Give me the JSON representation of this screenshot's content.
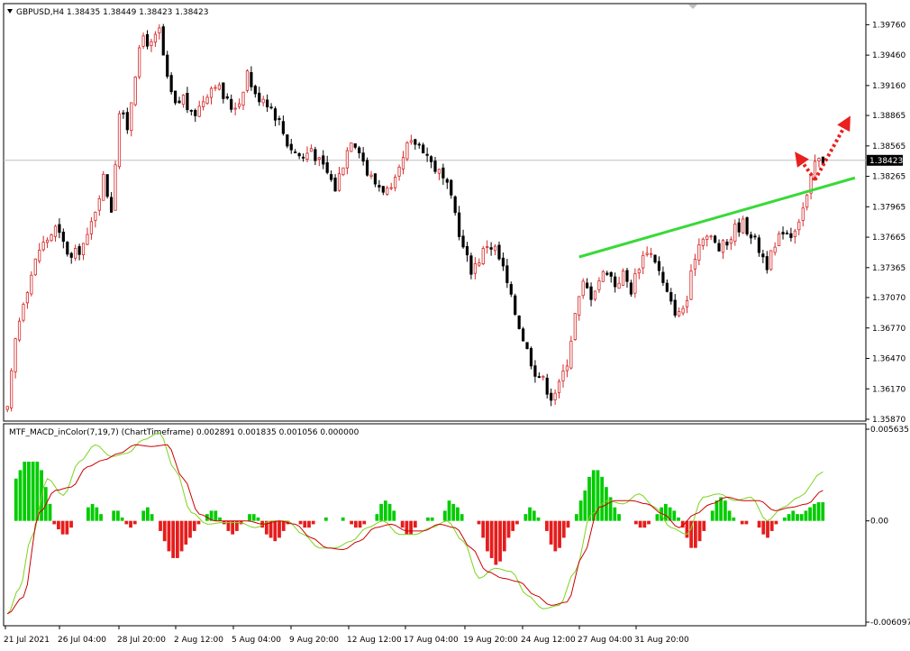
{
  "header": {
    "symbol_line": "GBPUSD,H4  1.38435 1.38449 1.38423 1.38423",
    "indicator_line": "MTF_MACD_inColor(7,19,7) (ChartTimeframe) 0.002891 0.001835 0.001056 0.000000"
  },
  "colors": {
    "bull_candle": "#d62828",
    "bear_candle": "#000000",
    "hist_positive": "#00cc00",
    "hist_negative": "#e61c1c",
    "macd_line": "#7ed321",
    "signal_line": "#cc0000",
    "trendline": "#39d939",
    "arrow": "#e82020",
    "price_line": "#c0c0c0"
  },
  "chart_data": [
    {
      "type": "candlestick",
      "symbol": "GBPUSD",
      "timeframe": "H4",
      "ohlc_header": {
        "open": 1.38435,
        "high": 1.38449,
        "low": 1.38423,
        "close": 1.38423
      },
      "ylim": [
        1.3587,
        1.3995
      ],
      "yticks": [
        1.3976,
        1.3946,
        1.3916,
        1.38865,
        1.38565,
        1.38265,
        1.37965,
        1.37665,
        1.37365,
        1.3707,
        1.3677,
        1.3647,
        1.3617,
        1.3587
      ],
      "ytick_labels": [
        "1.39760",
        "1.39460",
        "1.39160",
        "1.38865",
        "1.38565",
        "1.38265",
        "1.37965",
        "1.37665",
        "1.37365",
        "1.37070",
        "1.36770",
        "1.36470",
        "1.36170",
        "1.35870"
      ],
      "current_price": 1.38423,
      "current_price_label": "1.38423",
      "xtick_labels": [
        "21 Jul 2021",
        "26 Jul 04:00",
        "28 Jul 20:00",
        "2 Aug 12:00",
        "5 Aug 04:00",
        "9 Aug 20:00",
        "12 Aug 12:00",
        "17 Aug 04:00",
        "19 Aug 20:00",
        "24 Aug 12:00",
        "27 Aug 04:00",
        "31 Aug 20:00"
      ],
      "close_path": [
        [
          0,
          1.3595
        ],
        [
          2,
          1.3665
        ],
        [
          4,
          1.3705
        ],
        [
          8,
          1.3755
        ],
        [
          12,
          1.3775
        ],
        [
          16,
          1.3745
        ],
        [
          20,
          1.3765
        ],
        [
          24,
          1.3825
        ],
        [
          26,
          1.3795
        ],
        [
          28,
          1.389
        ],
        [
          30,
          1.3875
        ],
        [
          32,
          1.393
        ],
        [
          34,
          1.3965
        ],
        [
          36,
          1.3955
        ],
        [
          38,
          1.397
        ],
        [
          40,
          1.392
        ],
        [
          42,
          1.3895
        ],
        [
          44,
          1.3905
        ],
        [
          46,
          1.3885
        ],
        [
          48,
          1.3895
        ],
        [
          50,
          1.391
        ],
        [
          52,
          1.392
        ],
        [
          54,
          1.3905
        ],
        [
          56,
          1.3895
        ],
        [
          58,
          1.39
        ],
        [
          60,
          1.393
        ],
        [
          62,
          1.3905
        ],
        [
          64,
          1.3905
        ],
        [
          66,
          1.3895
        ],
        [
          68,
          1.388
        ],
        [
          70,
          1.386
        ],
        [
          72,
          1.385
        ],
        [
          74,
          1.3845
        ],
        [
          76,
          1.3855
        ],
        [
          78,
          1.384
        ],
        [
          80,
          1.383
        ],
        [
          82,
          1.3815
        ],
        [
          84,
          1.384
        ],
        [
          86,
          1.3865
        ],
        [
          88,
          1.3855
        ],
        [
          90,
          1.383
        ],
        [
          92,
          1.382
        ],
        [
          94,
          1.3815
        ],
        [
          96,
          1.381
        ],
        [
          98,
          1.383
        ],
        [
          100,
          1.3855
        ],
        [
          102,
          1.386
        ],
        [
          104,
          1.3855
        ],
        [
          106,
          1.384
        ],
        [
          108,
          1.383
        ],
        [
          110,
          1.3815
        ],
        [
          112,
          1.379
        ],
        [
          114,
          1.3755
        ],
        [
          116,
          1.3735
        ],
        [
          118,
          1.3745
        ],
        [
          120,
          1.376
        ],
        [
          122,
          1.3755
        ],
        [
          124,
          1.3735
        ],
        [
          126,
          1.3705
        ],
        [
          128,
          1.368
        ],
        [
          130,
          1.3655
        ],
        [
          132,
          1.3635
        ],
        [
          134,
          1.3625
        ],
        [
          136,
          1.361
        ],
        [
          138,
          1.362
        ],
        [
          140,
          1.3645
        ],
        [
          142,
          1.369
        ],
        [
          144,
          1.372
        ],
        [
          146,
          1.371
        ],
        [
          148,
          1.3725
        ],
        [
          150,
          1.3735
        ],
        [
          152,
          1.372
        ],
        [
          154,
          1.373
        ],
        [
          156,
          1.3715
        ],
        [
          158,
          1.374
        ],
        [
          160,
          1.3755
        ],
        [
          162,
          1.3745
        ],
        [
          164,
          1.372
        ],
        [
          166,
          1.37
        ],
        [
          168,
          1.369
        ],
        [
          170,
          1.3705
        ],
        [
          172,
          1.375
        ],
        [
          174,
          1.377
        ],
        [
          176,
          1.3765
        ],
        [
          178,
          1.3755
        ],
        [
          180,
          1.376
        ],
        [
          182,
          1.3775
        ],
        [
          184,
          1.378
        ],
        [
          186,
          1.377
        ],
        [
          188,
          1.3755
        ],
        [
          190,
          1.374
        ],
        [
          192,
          1.3755
        ],
        [
          194,
          1.3775
        ],
        [
          196,
          1.377
        ],
        [
          198,
          1.3785
        ],
        [
          200,
          1.3805
        ],
        [
          202,
          1.384
        ],
        [
          204,
          1.3843
        ]
      ],
      "annotations": [
        {
          "type": "trendline",
          "from": [
            143,
            1.3747
          ],
          "to": [
            212,
            1.3825
          ]
        },
        {
          "type": "arrow",
          "style": "dotted",
          "from": [
            202,
            1.3823
          ],
          "to": [
            210,
            1.388
          ]
        },
        {
          "type": "arrow",
          "style": "dotted",
          "from": [
            202,
            1.3823
          ],
          "to": [
            198,
            1.3845
          ]
        }
      ]
    },
    {
      "type": "histogram+line",
      "title": "MTF_MACD_inColor(7,19,7) (ChartTimeframe)",
      "values": {
        "macd": 0.002891,
        "signal": 0.001835,
        "histogram": 0.001056,
        "zero": 0.0
      },
      "ylim": [
        -0.006097,
        0.005635
      ],
      "ytick_labels": [
        "0.005635",
        "0.00",
        "-0.006097"
      ],
      "series": [
        {
          "name": "histogram",
          "values": [
            0.0,
            0.0,
            0.0025,
            0.003,
            0.0035,
            0.0035,
            0.0035,
            0.0035,
            0.003,
            0.002,
            0.001,
            -0.0002,
            -0.0005,
            -0.0008,
            -0.0008,
            -0.0004,
            0.0,
            0.0,
            0.0,
            0.0008,
            0.001,
            0.0008,
            0.0004,
            0.0,
            0.0,
            0.0006,
            0.0006,
            0.0002,
            -0.0002,
            -0.0004,
            -0.0002,
            0.0,
            0.0006,
            0.0008,
            0.0004,
            0.0,
            -0.0006,
            -0.0012,
            -0.0018,
            -0.0022,
            -0.0022,
            -0.0018,
            -0.0014,
            -0.001,
            -0.0006,
            -0.0002,
            0.0,
            0.0004,
            0.0006,
            0.0006,
            0.0002,
            -0.0002,
            -0.0006,
            -0.0008,
            -0.0006,
            -0.0002,
            0.0,
            0.0004,
            0.0004,
            0.0002,
            -0.0004,
            -0.0008,
            -0.001,
            -0.0012,
            -0.001,
            -0.0006,
            -0.0002,
            0.0,
            0.0,
            -0.0002,
            -0.0004,
            -0.0004,
            -0.0002,
            0.0,
            0.0,
            0.0002,
            0.0,
            0.0,
            0.0,
            0.0002,
            0.0,
            -0.0002,
            -0.0004,
            -0.0004,
            -0.0002,
            0.0,
            0.0,
            0.0004,
            0.001,
            0.0012,
            0.001,
            0.0006,
            0.0,
            -0.0004,
            -0.0008,
            -0.0008,
            -0.0004,
            0.0,
            0.0,
            0.0002,
            0.0002,
            0.0,
            0.0,
            0.0006,
            0.0012,
            0.001,
            0.0008,
            0.0004,
            0.0,
            0.0,
            0.0,
            -0.0002,
            -0.001,
            -0.0018,
            -0.0022,
            -0.0026,
            -0.0024,
            -0.0018,
            -0.001,
            -0.0006,
            -0.0002,
            0.0,
            0.0004,
            0.0008,
            0.0006,
            0.0002,
            0.0,
            -0.0006,
            -0.0014,
            -0.0018,
            -0.0016,
            -0.001,
            -0.0004,
            0.0,
            0.0004,
            0.0012,
            0.0018,
            0.0026,
            0.003,
            0.003,
            0.0026,
            0.002,
            0.0014,
            0.0008,
            0.0004,
            0.0,
            0.0,
            0.0,
            -0.0002,
            -0.0004,
            -0.0004,
            -0.0002,
            0.0,
            0.0004,
            0.0008,
            0.001,
            0.0008,
            0.0006,
            0.0002,
            -0.0004,
            -0.001,
            -0.0016,
            -0.0016,
            -0.0012,
            -0.0006,
            0.0,
            0.0006,
            0.0012,
            0.0014,
            0.0012,
            0.0006,
            0.0002,
            0.0,
            -0.0002,
            -0.0002,
            0.0,
            0.0,
            -0.0004,
            -0.0008,
            -0.001,
            -0.0006,
            -0.0002,
            0.0,
            0.0002,
            0.0004,
            0.0006,
            0.0004,
            0.0004,
            0.0006,
            0.0008,
            0.001,
            0.0011,
            0.0011
          ]
        },
        {
          "name": "macd",
          "path": [
            [
              0,
              -0.0055
            ],
            [
              3,
              -0.004
            ],
            [
              6,
              -0.001
            ],
            [
              10,
              0.0025
            ],
            [
              14,
              0.0015
            ],
            [
              18,
              0.0035
            ],
            [
              22,
              0.0045
            ],
            [
              26,
              0.0038
            ],
            [
              30,
              0.004
            ],
            [
              34,
              0.0048
            ],
            [
              38,
              0.0052
            ],
            [
              42,
              0.003
            ],
            [
              46,
              0.0005
            ],
            [
              50,
              -0.0002
            ],
            [
              54,
              -0.0001
            ],
            [
              58,
              -0.0001
            ],
            [
              62,
              -0.0004
            ],
            [
              66,
              0.0
            ],
            [
              70,
              0.0
            ],
            [
              74,
              -0.0008
            ],
            [
              78,
              -0.0016
            ],
            [
              82,
              -0.0016
            ],
            [
              86,
              -0.0012
            ],
            [
              90,
              -0.0004
            ],
            [
              94,
              0.0
            ],
            [
              98,
              -0.0008
            ],
            [
              102,
              -0.0008
            ],
            [
              106,
              -0.0004
            ],
            [
              110,
              0.0
            ],
            [
              114,
              -0.0012
            ],
            [
              118,
              -0.0034
            ],
            [
              122,
              -0.0028
            ],
            [
              126,
              -0.003
            ],
            [
              130,
              -0.0044
            ],
            [
              134,
              -0.0052
            ],
            [
              138,
              -0.005
            ],
            [
              142,
              -0.003
            ],
            [
              146,
              0.0004
            ],
            [
              150,
              0.0012
            ],
            [
              154,
              0.001
            ],
            [
              158,
              0.0016
            ],
            [
              162,
              0.0008
            ],
            [
              166,
              -0.0004
            ],
            [
              170,
              -0.0008
            ],
            [
              174,
              0.0014
            ],
            [
              178,
              0.0016
            ],
            [
              182,
              0.0012
            ],
            [
              186,
              0.0014
            ],
            [
              190,
              0.0
            ],
            [
              194,
              0.0008
            ],
            [
              198,
              0.0014
            ],
            [
              204,
              0.0029
            ]
          ]
        },
        {
          "name": "signal",
          "path": [
            [
              0,
              -0.0055
            ],
            [
              4,
              -0.0045
            ],
            [
              8,
              0.0005
            ],
            [
              12,
              0.0018
            ],
            [
              16,
              0.002
            ],
            [
              20,
              0.0032
            ],
            [
              24,
              0.0036
            ],
            [
              28,
              0.004
            ],
            [
              32,
              0.0045
            ],
            [
              36,
              0.0044
            ],
            [
              40,
              0.0045
            ],
            [
              44,
              0.0025
            ],
            [
              48,
              0.0004
            ],
            [
              52,
              0.0
            ],
            [
              56,
              0.0
            ],
            [
              60,
              0.0
            ],
            [
              64,
              -0.0002
            ],
            [
              68,
              0.0
            ],
            [
              72,
              -0.0002
            ],
            [
              76,
              -0.001
            ],
            [
              80,
              -0.0016
            ],
            [
              84,
              -0.0017
            ],
            [
              88,
              -0.0012
            ],
            [
              92,
              -0.0004
            ],
            [
              96,
              -0.0002
            ],
            [
              100,
              -0.0006
            ],
            [
              104,
              -0.0006
            ],
            [
              108,
              -0.0002
            ],
            [
              112,
              -0.0004
            ],
            [
              116,
              -0.0016
            ],
            [
              120,
              -0.003
            ],
            [
              124,
              -0.0034
            ],
            [
              128,
              -0.0036
            ],
            [
              132,
              -0.0044
            ],
            [
              136,
              -0.005
            ],
            [
              140,
              -0.0048
            ],
            [
              144,
              -0.002
            ],
            [
              148,
              0.0008
            ],
            [
              152,
              0.0012
            ],
            [
              156,
              0.0012
            ],
            [
              160,
              0.001
            ],
            [
              164,
              0.0004
            ],
            [
              168,
              -0.0004
            ],
            [
              172,
              0.0004
            ],
            [
              176,
              0.001
            ],
            [
              180,
              0.0014
            ],
            [
              184,
              0.0012
            ],
            [
              188,
              0.0012
            ],
            [
              192,
              0.0006
            ],
            [
              196,
              0.0008
            ],
            [
              200,
              0.001
            ],
            [
              204,
              0.0018
            ]
          ]
        }
      ]
    }
  ]
}
